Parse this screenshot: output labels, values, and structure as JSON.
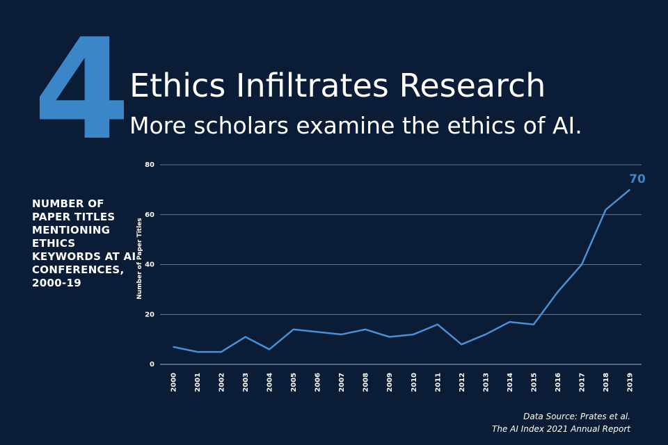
{
  "header": {
    "number": "4",
    "title": "Ethics Infiltrates Research",
    "subtitle": "More scholars examine the ethics of AI."
  },
  "side_label": "NUMBER OF PAPER TITLES MENTIONING ETHICS KEYWORDS AT AI CONFERENCES, 2000-19",
  "source": {
    "line1": "Data Source: Prates et al.",
    "line2": "The AI Index 2021 Annual Report"
  },
  "colors": {
    "background": "#0b1c36",
    "accent": "#3a86c8",
    "line": "#4a90d6",
    "grid": "#8a96a8"
  },
  "chart_data": {
    "type": "line",
    "title": "",
    "xlabel": "",
    "ylabel": "Number of Paper Titles",
    "ylim": [
      0,
      80
    ],
    "yticks": [
      0,
      20,
      40,
      60,
      80
    ],
    "grid": true,
    "x": [
      "2000",
      "2001",
      "2002",
      "2003",
      "2004",
      "2005",
      "2006",
      "2007",
      "2008",
      "2009",
      "2010",
      "2011",
      "2012",
      "2013",
      "2014",
      "2015",
      "2016",
      "2017",
      "2018",
      "2019"
    ],
    "series": [
      {
        "values": [
          7,
          5,
          5,
          11,
          6,
          14,
          13,
          12,
          14,
          11,
          12,
          16,
          8,
          12,
          17,
          16,
          29,
          40,
          62,
          70
        ]
      }
    ],
    "end_label": "70"
  }
}
